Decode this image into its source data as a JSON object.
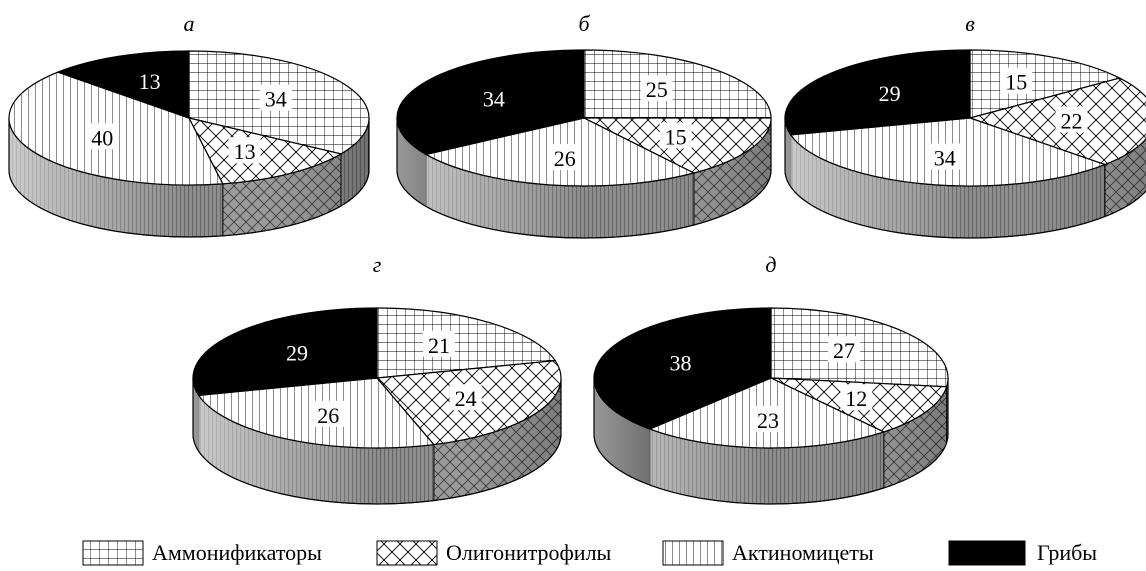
{
  "chart_data": [
    {
      "type": "pie",
      "panel_label": "а",
      "slices": [
        {
          "category": "Аммонификаторы",
          "value": 34
        },
        {
          "category": "Олигонитрофилы",
          "value": 13
        },
        {
          "category": "Актиномицеты",
          "value": 40
        },
        {
          "category": "Грибы",
          "value": 13
        }
      ]
    },
    {
      "type": "pie",
      "panel_label": "б",
      "slices": [
        {
          "category": "Аммонификаторы",
          "value": 25
        },
        {
          "category": "Олигонитрофилы",
          "value": 15
        },
        {
          "category": "Актиномицеты",
          "value": 26
        },
        {
          "category": "Грибы",
          "value": 34
        }
      ]
    },
    {
      "type": "pie",
      "panel_label": "в",
      "slices": [
        {
          "category": "Аммонификаторы",
          "value": 15
        },
        {
          "category": "Олигонитрофилы",
          "value": 22
        },
        {
          "category": "Актиномицеты",
          "value": 34
        },
        {
          "category": "Грибы",
          "value": 29
        }
      ]
    },
    {
      "type": "pie",
      "panel_label": "г",
      "slices": [
        {
          "category": "Аммонификаторы",
          "value": 21
        },
        {
          "category": "Олигонитрофилы",
          "value": 24
        },
        {
          "category": "Актиномицеты",
          "value": 26
        },
        {
          "category": "Грибы",
          "value": 29
        }
      ]
    },
    {
      "type": "pie",
      "panel_label": "д",
      "slices": [
        {
          "category": "Аммонификаторы",
          "value": 27
        },
        {
          "category": "Олигонитрофилы",
          "value": 12
        },
        {
          "category": "Актиномицеты",
          "value": 23
        },
        {
          "category": "Грибы",
          "value": 38
        }
      ]
    }
  ],
  "legend": [
    {
      "label": "Аммонификаторы",
      "pattern": "grid"
    },
    {
      "label": "Олигонитрофилы",
      "pattern": "crosshatch"
    },
    {
      "label": "Актиномицеты",
      "pattern": "vertical-lines"
    },
    {
      "label": "Грибы",
      "pattern": "solid-black"
    }
  ],
  "colors": {
    "ink": "#000000",
    "background": "#ffffff",
    "side_shade": "#9a9a9a"
  }
}
